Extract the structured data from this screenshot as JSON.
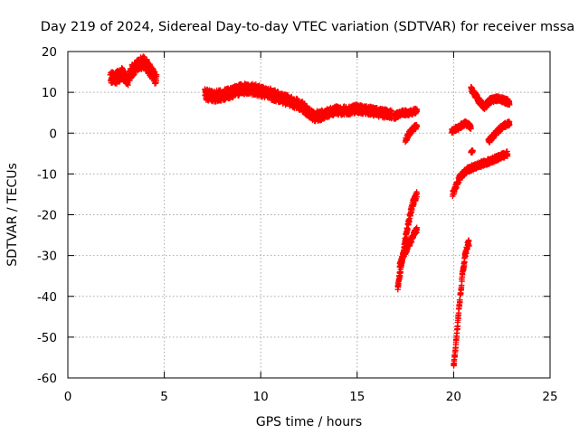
{
  "chart_data": {
    "type": "scatter",
    "title": "Day 219 of 2024, Sidereal Day-to-day VTEC variation (SDTVAR) for receiver mssa",
    "xlabel": "GPS time / hours",
    "ylabel": "SDTVAR / TECUs",
    "xlim": [
      0,
      25
    ],
    "ylim": [
      -60,
      20
    ],
    "x_ticks": [
      0,
      5,
      10,
      15,
      20,
      25
    ],
    "y_ticks": [
      20,
      10,
      0,
      -10,
      -20,
      -30,
      -40,
      -50,
      -60
    ],
    "x_tick_labels": [
      "0",
      "5",
      "10",
      "15",
      "20",
      "25"
    ],
    "y_tick_labels": [
      "20",
      "10",
      "0",
      "-10",
      "-20",
      "-30",
      "-40",
      "-50",
      "-60"
    ],
    "grid": true,
    "marker": "+",
    "marker_color": "#ff0000",
    "series": [
      {
        "name": "SDTVAR",
        "segments": [
          {
            "t0": 2.2,
            "t1": 4.6,
            "points": [
              [
                2.2,
                14
              ],
              [
                2.5,
                13.5
              ],
              [
                2.8,
                14.5
              ],
              [
                3.1,
                13
              ],
              [
                3.3,
                15
              ],
              [
                3.6,
                16.5
              ],
              [
                3.9,
                17.5
              ],
              [
                4.2,
                16
              ],
              [
                4.4,
                14.5
              ],
              [
                4.6,
                13
              ]
            ],
            "spread": 1.6
          },
          {
            "t0": 7.1,
            "t1": 10.8,
            "points": [
              [
                7.1,
                9.5
              ],
              [
                7.6,
                9
              ],
              [
                8.2,
                9.5
              ],
              [
                8.8,
                10.5
              ],
              [
                9.3,
                11
              ],
              [
                9.8,
                10.5
              ],
              [
                10.3,
                10
              ],
              [
                10.8,
                9
              ]
            ],
            "spread": 1.4
          },
          {
            "t0": 10.8,
            "t1": 13.2,
            "points": [
              [
                10.8,
                9
              ],
              [
                11.4,
                8
              ],
              [
                12,
                7
              ],
              [
                12.4,
                5.5
              ],
              [
                12.8,
                4
              ],
              [
                13.2,
                4.5
              ]
            ],
            "spread": 1.3
          },
          {
            "t0": 13.2,
            "t1": 16.8,
            "points": [
              [
                13.2,
                4.5
              ],
              [
                13.8,
                5.5
              ],
              [
                14.4,
                5.5
              ],
              [
                15,
                6
              ],
              [
                15.6,
                5.5
              ],
              [
                16.2,
                5
              ],
              [
                16.8,
                4.5
              ]
            ],
            "spread": 1.1
          },
          {
            "t0": 16.9,
            "t1": 18.1,
            "points": [
              [
                16.9,
                4
              ],
              [
                17.3,
                5
              ],
              [
                17.7,
                5
              ],
              [
                18.1,
                5.5
              ]
            ],
            "spread": 0.7
          },
          {
            "t0": 17.5,
            "t1": 18.1,
            "points": [
              [
                17.5,
                -2
              ],
              [
                17.7,
                0
              ],
              [
                18,
                1.5
              ]
            ],
            "spread": 0.6
          },
          {
            "t0": 17.1,
            "t1": 18.1,
            "points": [
              [
                17.1,
                -38
              ],
              [
                17.3,
                -32
              ],
              [
                17.5,
                -26
              ],
              [
                17.7,
                -21
              ],
              [
                17.9,
                -17
              ],
              [
                18.1,
                -15
              ]
            ],
            "spread": 0.9
          },
          {
            "t0": 17.2,
            "t1": 18.1,
            "points": [
              [
                17.2,
                -32
              ],
              [
                17.6,
                -28
              ],
              [
                18.1,
                -23.5
              ]
            ],
            "spread": 0.8
          },
          {
            "t0": 20,
            "t1": 20.8,
            "points": [
              [
                20,
                -57
              ],
              [
                20.15,
                -50
              ],
              [
                20.3,
                -42
              ],
              [
                20.45,
                -35
              ],
              [
                20.6,
                -30
              ],
              [
                20.75,
                -27
              ]
            ],
            "spread": 0.8
          },
          {
            "t0": 19.95,
            "t1": 22.8,
            "points": [
              [
                19.95,
                -15
              ],
              [
                20.3,
                -11
              ],
              [
                20.7,
                -9
              ],
              [
                21.2,
                -8
              ],
              [
                21.8,
                -7
              ],
              [
                22.3,
                -6
              ],
              [
                22.8,
                -5
              ]
            ],
            "spread": 0.7
          },
          {
            "t0": 19.9,
            "t1": 20.9,
            "points": [
              [
                19.9,
                0.5
              ],
              [
                20.3,
                1.5
              ],
              [
                20.6,
                2.5
              ],
              [
                20.9,
                1.5
              ]
            ],
            "spread": 0.6
          },
          {
            "t0": 20.9,
            "t1": 22.9,
            "points": [
              [
                20.9,
                11
              ],
              [
                21.3,
                8
              ],
              [
                21.6,
                6.5
              ],
              [
                21.9,
                8
              ],
              [
                22.3,
                8.5
              ],
              [
                22.9,
                7.5
              ]
            ],
            "spread": 0.7
          },
          {
            "t0": 21.8,
            "t1": 22.9,
            "points": [
              [
                21.8,
                -2
              ],
              [
                22.2,
                0
              ],
              [
                22.5,
                1.5
              ],
              [
                22.9,
                2.5
              ]
            ],
            "spread": 0.6
          },
          {
            "t0": 20.9,
            "t1": 21.0,
            "points": [
              [
                20.9,
                -4.5
              ],
              [
                21.0,
                -4.5
              ]
            ],
            "spread": 0.3
          }
        ]
      }
    ]
  }
}
